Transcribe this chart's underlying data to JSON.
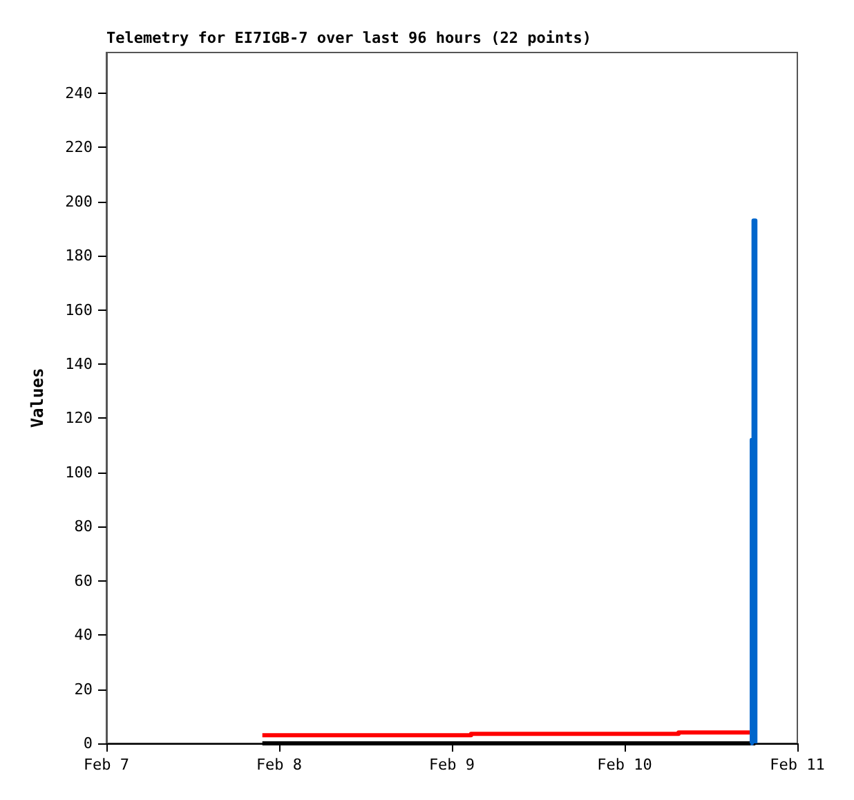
{
  "chart_data": {
    "type": "step",
    "title": "Telemetry for EI7IGB-7 over last 96 hours (22 points)",
    "ylabel": "Values",
    "xlim": [
      "--02-07",
      "--02-11"
    ],
    "xticks": [
      {
        "value": "--02-07",
        "label": "Feb 7"
      },
      {
        "value": "--02-08",
        "label": "Feb 8"
      },
      {
        "value": "--02-09",
        "label": "Feb 9"
      },
      {
        "value": "--02-10",
        "label": "Feb 10"
      },
      {
        "value": "--02-11",
        "label": "Feb 11"
      }
    ],
    "ylim": [
      0,
      255
    ],
    "yticks": [
      0,
      20,
      40,
      60,
      80,
      100,
      120,
      140,
      160,
      180,
      200,
      220,
      240
    ],
    "grid": false,
    "marker": "none",
    "line_style": "solid",
    "series": [
      {
        "color": "#ff0000",
        "x": [
          "--02-07T21:40",
          "--02-09T02:40",
          "--02-10T07:30",
          "--02-10T18:10"
        ],
        "values": [
          3,
          3.5,
          4,
          4
        ]
      },
      {
        "color": "#000000",
        "x": [
          "--02-07T21:40",
          "--02-10T18:10"
        ],
        "values": [
          0,
          0
        ]
      },
      {
        "color": "#0066cc",
        "x": [
          "--02-10T17:30",
          "--02-10T17:40",
          "--02-10T17:55",
          "--02-10T18:10"
        ],
        "values": [
          0,
          112,
          193,
          0
        ]
      }
    ]
  }
}
